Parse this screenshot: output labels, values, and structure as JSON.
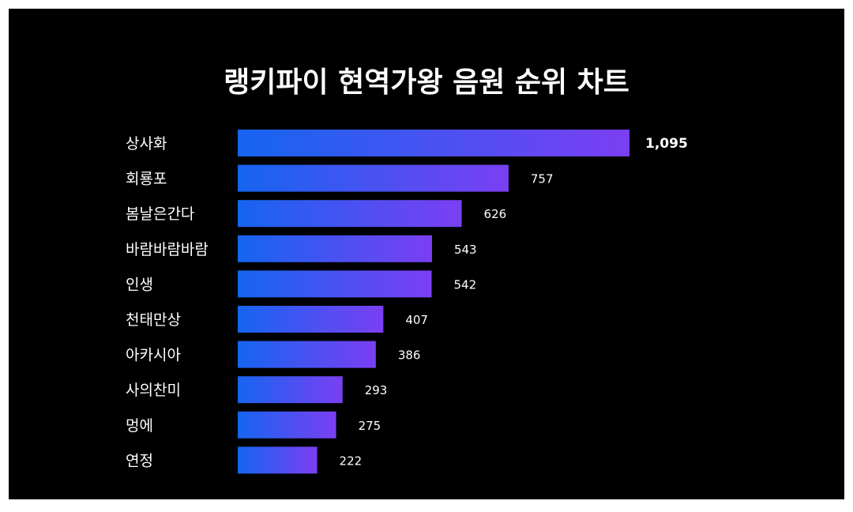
{
  "chart_data": {
    "type": "bar",
    "orientation": "horizontal",
    "title": "랭키파이 현역가왕 음원 순위 차트",
    "categories": [
      "상사화",
      "회룡포",
      "봄날은간다",
      "바람바람바람",
      "인생",
      "천태만상",
      "아카시아",
      "사의찬미",
      "멍에",
      "연정"
    ],
    "values": [
      1095,
      757,
      626,
      543,
      542,
      407,
      386,
      293,
      275,
      222
    ],
    "value_labels": [
      "1,095",
      "757",
      "626",
      "543",
      "542",
      "407",
      "386",
      "293",
      "275",
      "222"
    ],
    "xlim": [
      0,
      1095
    ],
    "grid": false,
    "legend": "none"
  },
  "colors": {
    "background": "#000000",
    "border": "#ffffff",
    "text": "#ffffff",
    "bar_gradient_start": "#1565f0",
    "bar_gradient_end": "#7b3ff2"
  }
}
